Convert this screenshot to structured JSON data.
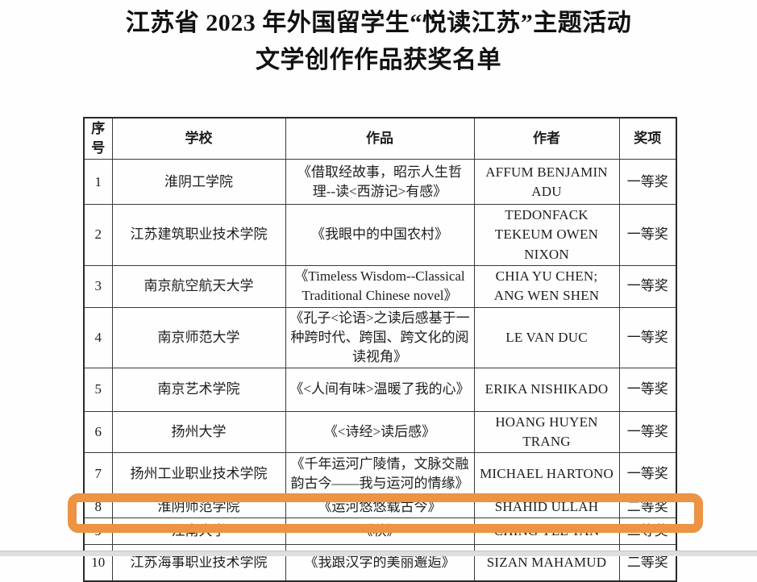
{
  "title": {
    "line1": "江苏省 2023 年外国留学生“悦读江苏”主题活动",
    "line2": "文学创作作品获奖名单"
  },
  "table": {
    "headers": [
      "序号",
      "学校",
      "作品",
      "作者",
      "奖项"
    ],
    "rows": [
      {
        "no": "1",
        "school": "淮阴工学院",
        "work": "《借取经故事，昭示人生哲理--读<西游记>有感》",
        "author": "AFFUM BENJAMIN\nADU",
        "award": "一等奖",
        "highlighted": false
      },
      {
        "no": "2",
        "school": "江苏建筑职业技术学院",
        "work": "《我眼中的中国农村》",
        "author": "TEDONFACK\nTEKEUM OWEN\nNIXON",
        "award": "一等奖",
        "highlighted": false
      },
      {
        "no": "3",
        "school": "南京航空航天大学",
        "work": "《Timeless Wisdom--Classical Traditional Chinese novel》",
        "author": "CHIA YU CHEN;\nANG WEN SHEN",
        "award": "一等奖",
        "highlighted": false
      },
      {
        "no": "4",
        "school": "南京师范大学",
        "work": "《孔子<论语>之读后感基于一种跨时代、跨国、跨文化的阅读视角》",
        "author": "LE VAN DUC",
        "award": "一等奖",
        "highlighted": false
      },
      {
        "no": "5",
        "school": "南京艺术学院",
        "work": "《<人间有味>温暖了我的心》",
        "author": "ERIKA NISHIKADO",
        "award": "一等奖",
        "highlighted": false
      },
      {
        "no": "6",
        "school": "扬州大学",
        "work": "《<诗经>读后感》",
        "author": "HOANG HUYEN\nTRANG",
        "award": "一等奖",
        "highlighted": false
      },
      {
        "no": "7",
        "school": "扬州工业职业技术学院",
        "work": "《千年运河广陵情，文脉交融韵古今——我与运河的情缘》",
        "author": "MICHAEL HARTONO",
        "award": "一等奖",
        "highlighted": false
      },
      {
        "no": "8",
        "school": "淮阴师范学院",
        "work": "《运河悠悠载古今》",
        "author": "SHAHID ULLAH",
        "award": "二等奖",
        "highlighted": false
      },
      {
        "no": "9",
        "school": "江南大学",
        "work": "《秋》",
        "author": "CHING YEE TAN",
        "award": "二等奖",
        "highlighted": true
      },
      {
        "no": "10",
        "school": "江苏海事职业技术学院",
        "work": "《我跟汉字的美丽邂逅》",
        "author": "SIZAN MAHAMUD",
        "award": "二等奖",
        "highlighted": false
      }
    ]
  },
  "annotation": {
    "type": "highlight-rectangle",
    "highlighted_row_no": "9",
    "color": "#EC9344"
  },
  "colors": {
    "page_background": "#fefefe",
    "text": "#1d1d1d",
    "table_border": "#3a3a3a",
    "page_bottom_edge": "#dedede"
  }
}
